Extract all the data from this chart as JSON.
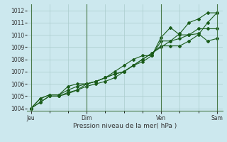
{
  "xlabel": "Pression niveau de la mer( hPa )",
  "bg_color": "#cce8ee",
  "grid_color": "#aacccc",
  "line_color": "#1a5c1a",
  "marker_color": "#1a5c1a",
  "ylim": [
    1003.8,
    1012.5
  ],
  "yticks": [
    1004,
    1005,
    1006,
    1007,
    1008,
    1009,
    1010,
    1011,
    1012
  ],
  "xtick_labels": [
    "Jeu",
    "Dim",
    "Ven",
    "Sam"
  ],
  "xtick_positions": [
    0,
    30,
    70,
    100
  ],
  "series": [
    {
      "x": [
        0,
        5,
        10,
        15,
        20,
        25,
        30,
        35,
        40,
        45,
        50,
        55,
        60,
        65,
        70,
        75,
        80,
        85,
        90,
        95,
        100
      ],
      "y": [
        1004.0,
        1004.8,
        1005.1,
        1005.1,
        1005.8,
        1006.0,
        1006.0,
        1006.2,
        1006.5,
        1006.8,
        1007.0,
        1007.5,
        1008.0,
        1008.5,
        1009.1,
        1009.1,
        1009.1,
        1009.5,
        1010.0,
        1011.0,
        1011.8
      ]
    },
    {
      "x": [
        0,
        5,
        10,
        15,
        20,
        25,
        30,
        35,
        40,
        45,
        50,
        55,
        60,
        65,
        70,
        75,
        80,
        85,
        90,
        95,
        100
      ],
      "y": [
        1004.0,
        1004.8,
        1005.1,
        1005.1,
        1005.5,
        1005.8,
        1006.0,
        1006.2,
        1006.5,
        1007.0,
        1007.5,
        1008.0,
        1008.3,
        1008.3,
        1009.8,
        1010.6,
        1010.0,
        1010.0,
        1010.1,
        1009.5,
        1009.7
      ]
    },
    {
      "x": [
        0,
        5,
        10,
        15,
        20,
        25,
        30,
        35,
        40,
        45,
        50,
        55,
        60,
        65,
        70,
        75,
        80,
        85,
        90,
        95,
        100
      ],
      "y": [
        1004.0,
        1004.5,
        1005.0,
        1005.0,
        1005.2,
        1005.5,
        1005.8,
        1006.0,
        1006.2,
        1006.5,
        1007.0,
        1007.5,
        1008.0,
        1008.5,
        1009.0,
        1009.5,
        1009.7,
        1010.0,
        1010.5,
        1010.5,
        1010.5
      ]
    },
    {
      "x": [
        0,
        5,
        10,
        15,
        20,
        25,
        30,
        35,
        40,
        45,
        50,
        55,
        60,
        65,
        70,
        75,
        80,
        85,
        90,
        95,
        100
      ],
      "y": [
        1004.0,
        1004.5,
        1005.0,
        1005.0,
        1005.3,
        1005.5,
        1006.0,
        1006.2,
        1006.5,
        1006.8,
        1007.0,
        1007.5,
        1007.8,
        1008.3,
        1009.5,
        1009.5,
        1010.1,
        1011.0,
        1011.3,
        1011.8,
        1011.8
      ]
    }
  ]
}
